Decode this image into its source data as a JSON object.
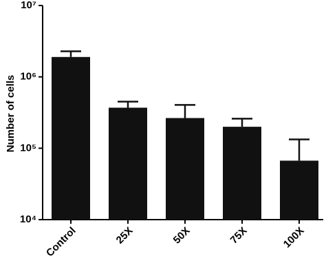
{
  "chart_data": {
    "type": "bar",
    "y_label": "Number of cells",
    "log_scale": true,
    "categories": [
      "Control",
      "25X",
      "50X",
      "75X",
      "100X"
    ],
    "values": [
      1900000,
      370000,
      265000,
      200000,
      67000
    ],
    "errors": [
      380000,
      80000,
      140000,
      60000,
      66000
    ],
    "color": "#111111",
    "ylim": [
      10000,
      10000000
    ],
    "yticks": [
      {
        "value": 10000,
        "label": "10⁴"
      },
      {
        "value": 100000,
        "label": "10⁵"
      },
      {
        "value": 1000000,
        "label": "10⁶"
      },
      {
        "value": 10000000,
        "label": "10⁷"
      }
    ],
    "grid": false
  }
}
